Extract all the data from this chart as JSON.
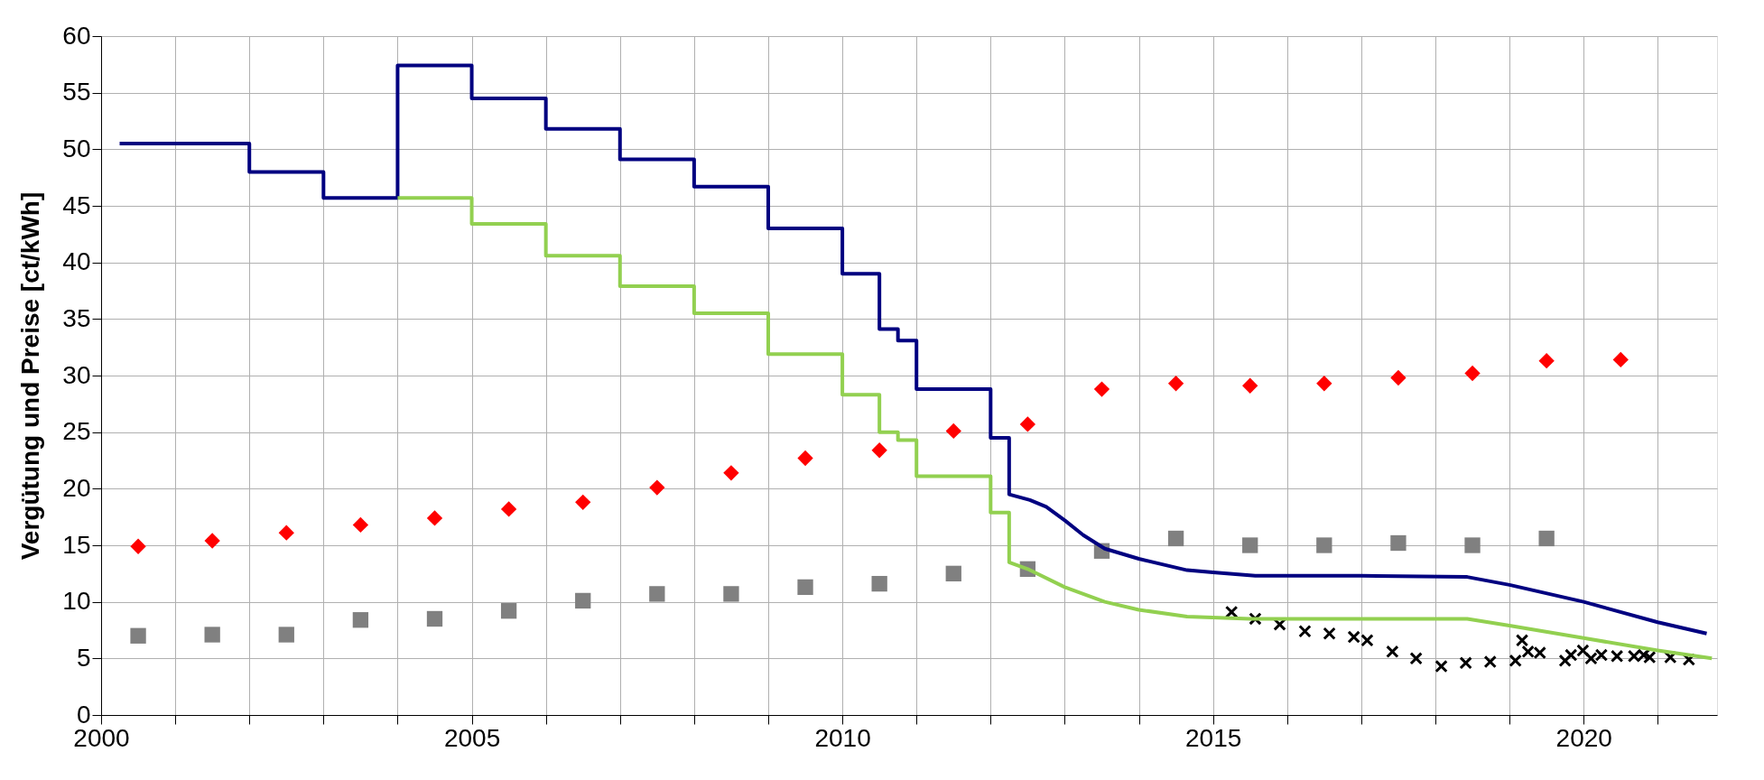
{
  "chart_data": {
    "type": "line",
    "ylabel": "Vergütung und Preise [ct/kWh]",
    "xlim": [
      2000,
      2021.8
    ],
    "ylim": [
      0,
      60
    ],
    "xticks": [
      2000,
      {
        "value": 2001,
        "label": null
      },
      {
        "value": 2002,
        "label": null
      },
      {
        "value": 2003,
        "label": null
      },
      {
        "value": 2004,
        "label": null
      },
      2005,
      {
        "value": 2006,
        "label": null
      },
      {
        "value": 2007,
        "label": null
      },
      {
        "value": 2008,
        "label": null
      },
      {
        "value": 2009,
        "label": null
      },
      2010,
      {
        "value": 2011,
        "label": null
      },
      {
        "value": 2012,
        "label": null
      },
      {
        "value": 2013,
        "label": null
      },
      {
        "value": 2014,
        "label": null
      },
      2015,
      {
        "value": 2016,
        "label": null
      },
      {
        "value": 2017,
        "label": null
      },
      {
        "value": 2018,
        "label": null
      },
      {
        "value": 2019,
        "label": null
      },
      2020,
      {
        "value": 2021,
        "label": null
      }
    ],
    "yticks": [
      0,
      5,
      10,
      15,
      20,
      25,
      30,
      35,
      40,
      45,
      50,
      55,
      60
    ],
    "grid": true,
    "series": [
      {
        "color": "#000080",
        "line_style": "solid",
        "x": [
          2000.25,
          2002,
          2002,
          2003,
          2003,
          2004,
          2004,
          2005,
          2005,
          2006,
          2006,
          2007,
          2007,
          2008,
          2008,
          2009,
          2009,
          2010,
          2010,
          2010.5,
          2010.5,
          2010.75,
          2010.75,
          2011,
          2011,
          2012,
          2012,
          2012.25,
          2012.25,
          2012.53,
          2012.75,
          2013,
          2013.25,
          2013.54,
          2014,
          2014.65,
          2015,
          2015.57,
          2017,
          2018.43,
          2019,
          2020,
          2021,
          2021.66
        ],
        "values": [
          50.5,
          50.5,
          48.0,
          48.0,
          45.7,
          45.7,
          57.4,
          57.4,
          54.5,
          54.5,
          51.8,
          51.8,
          49.1,
          49.1,
          46.7,
          46.7,
          43.0,
          43.0,
          39.0,
          39.0,
          34.1,
          34.1,
          33.1,
          33.1,
          28.8,
          28.8,
          24.5,
          24.5,
          19.5,
          19.0,
          18.4,
          17.2,
          15.9,
          14.7,
          13.8,
          12.8,
          12.6,
          12.3,
          12.3,
          12.2,
          11.5,
          10.0,
          8.2,
          7.2
        ]
      },
      {
        "color": "#92d050",
        "line_style": "solid",
        "x": [
          2004,
          2005,
          2005,
          2006,
          2006,
          2007,
          2007,
          2008,
          2008,
          2009,
          2009,
          2010,
          2010,
          2010.5,
          2010.5,
          2010.75,
          2010.75,
          2011,
          2011,
          2012,
          2012,
          2012.25,
          2012.25,
          2012.5,
          2013,
          2013.54,
          2014,
          2014.65,
          2015.5,
          2018.43,
          2019,
          2020,
          2021,
          2021.73
        ],
        "values": [
          45.7,
          45.7,
          43.4,
          43.4,
          40.6,
          40.6,
          37.9,
          37.9,
          35.5,
          35.5,
          31.9,
          31.9,
          28.3,
          28.3,
          25.0,
          25.0,
          24.3,
          24.3,
          21.1,
          21.1,
          17.9,
          17.9,
          13.5,
          12.9,
          11.3,
          10.0,
          9.3,
          8.7,
          8.5,
          8.5,
          7.9,
          6.8,
          5.7,
          5.0
        ]
      },
      {
        "type": "scatter",
        "color": "#ff0000",
        "marker": "diamond",
        "x": [
          2000.5,
          2001.5,
          2002.5,
          2003.5,
          2004.5,
          2005.5,
          2006.5,
          2007.5,
          2008.5,
          2009.5,
          2010.5,
          2011.5,
          2012.5,
          2013.5,
          2014.5,
          2015.5,
          2016.5,
          2017.5,
          2018.5,
          2019.5,
          2020.5
        ],
        "values": [
          14.9,
          15.4,
          16.1,
          16.8,
          17.4,
          18.2,
          18.8,
          20.1,
          21.4,
          22.7,
          23.4,
          25.1,
          25.7,
          28.8,
          29.3,
          29.1,
          29.3,
          29.8,
          30.2,
          31.3,
          31.4
        ]
      },
      {
        "type": "scatter",
        "color": "#808080",
        "marker": "square",
        "x": [
          2000.5,
          2001.5,
          2002.5,
          2003.5,
          2004.5,
          2005.5,
          2006.5,
          2007.5,
          2008.5,
          2009.5,
          2010.5,
          2011.5,
          2012.5,
          2013.5,
          2014.5,
          2015.5,
          2016.5,
          2017.5,
          2018.5,
          2019.5
        ],
        "values": [
          7.0,
          7.1,
          7.1,
          8.4,
          8.5,
          9.2,
          10.1,
          10.7,
          10.7,
          11.3,
          11.6,
          12.5,
          12.9,
          14.5,
          15.6,
          15.0,
          15.0,
          15.2,
          15.0,
          15.6
        ]
      },
      {
        "type": "scatter",
        "color": "#000000",
        "marker": "cross",
        "x": [
          2015.25,
          2015.57,
          2015.9,
          2016.24,
          2016.57,
          2016.9,
          2017.08,
          2017.42,
          2017.74,
          2018.08,
          2018.41,
          2018.74,
          2019.08,
          2019.17,
          2019.25,
          2019.41,
          2019.75,
          2019.83,
          2019.99,
          2020.1,
          2020.24,
          2020.45,
          2020.68,
          2020.81,
          2020.89,
          2021.17,
          2021.42
        ],
        "values": [
          9.1,
          8.5,
          8.0,
          7.4,
          7.2,
          6.9,
          6.6,
          5.6,
          5.0,
          4.3,
          4.6,
          4.7,
          4.8,
          6.6,
          5.6,
          5.5,
          4.8,
          5.3,
          5.7,
          5.0,
          5.3,
          5.2,
          5.2,
          5.3,
          5.1,
          5.1,
          4.9
        ]
      }
    ]
  }
}
